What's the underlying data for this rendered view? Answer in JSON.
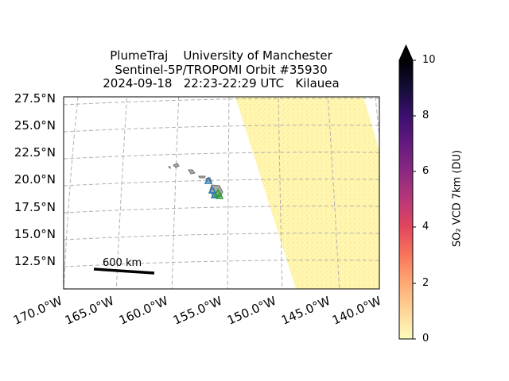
{
  "title": {
    "line1": "PlumeTraj    University of Manchester",
    "line2": "Sentinel-5P/TROPOMI Orbit #35930",
    "line3": "2024-09-18   22:23-22:29 UTC   Kilauea"
  },
  "map": {
    "lat_labels": [
      "27.5°N",
      "25.0°N",
      "22.5°N",
      "20.0°N",
      "17.5°N",
      "15.0°N",
      "12.5°N"
    ],
    "lon_labels": [
      "170.0°W",
      "165.0°W",
      "160.0°W",
      "155.0°W",
      "150.0°W",
      "145.0°W",
      "140.0°W"
    ],
    "scale_bar_label": "600 km",
    "gridlines": true,
    "swath_color": "#fff8b0",
    "coast_color": "#808080",
    "volcano_marker_color": "#2ca02c",
    "station_marker_color": "#1f77b4"
  },
  "colorbar": {
    "label": "SO₂ VCD 7km (DU)",
    "ticks": [
      "0",
      "2",
      "4",
      "6",
      "8",
      "10"
    ],
    "min": 0,
    "max": 10,
    "colormap": "magma_r",
    "extend": "max"
  }
}
